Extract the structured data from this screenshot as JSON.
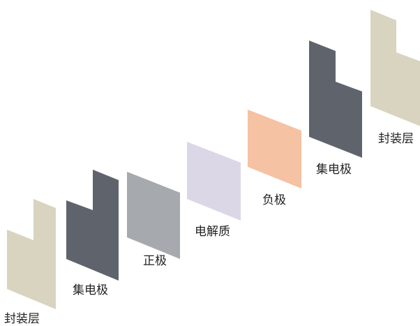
{
  "diagram": {
    "layers": [
      {
        "id": "encap-1",
        "label": "封装层",
        "shape": "notched",
        "color": "#d9d4c0"
      },
      {
        "id": "collector-1",
        "label": "集电极",
        "shape": "notched",
        "color": "#5f646c"
      },
      {
        "id": "cathode",
        "label": "正极",
        "shape": "plate",
        "color": "#a6a9ad"
      },
      {
        "id": "electrolyte",
        "label": "电解质",
        "shape": "plate",
        "color": "#dcd7e6"
      },
      {
        "id": "anode",
        "label": "负极",
        "shape": "plate",
        "color": "#f5c2a3"
      },
      {
        "id": "collector-2",
        "label": "集电极",
        "shape": "notched",
        "color": "#5f646c"
      },
      {
        "id": "encap-2",
        "label": "封装层",
        "shape": "notched",
        "color": "#d9d4c0"
      }
    ]
  }
}
